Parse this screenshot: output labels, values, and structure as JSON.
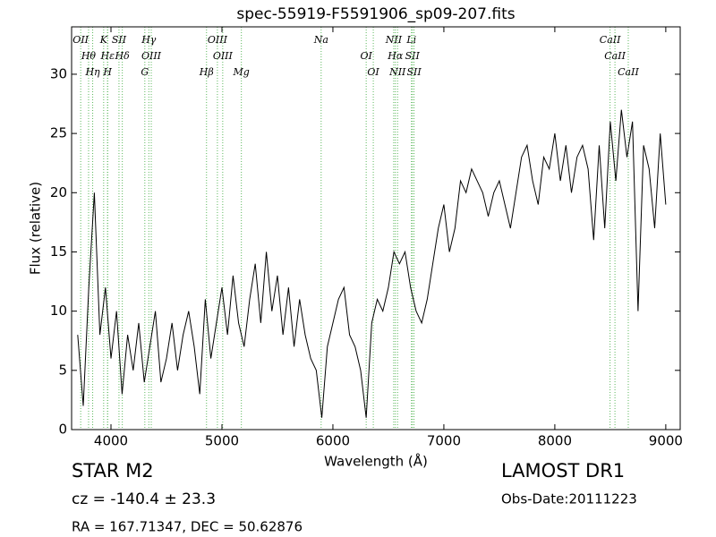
{
  "chart_data": {
    "type": "line",
    "title": "spec-55919-F5591906_sp09-207.fits",
    "x_label": "Wavelength (Å)",
    "y_label": "Flux (relative)",
    "xlim": [
      3645,
      9130
    ],
    "ylim": [
      0,
      34
    ],
    "xticks": [
      4000,
      5000,
      6000,
      7000,
      8000,
      9000
    ],
    "yticks": [
      0,
      5,
      10,
      15,
      20,
      25,
      30
    ],
    "series": [
      {
        "color": "#000000",
        "x": [
          3700,
          3750,
          3800,
          3850,
          3900,
          3950,
          4000,
          4050,
          4100,
          4150,
          4200,
          4250,
          4300,
          4350,
          4400,
          4450,
          4500,
          4550,
          4600,
          4650,
          4700,
          4750,
          4800,
          4850,
          4900,
          4950,
          5000,
          5050,
          5100,
          5150,
          5200,
          5250,
          5300,
          5350,
          5400,
          5450,
          5500,
          5550,
          5600,
          5650,
          5700,
          5750,
          5800,
          5850,
          5900,
          5950,
          6000,
          6050,
          6100,
          6150,
          6200,
          6250,
          6300,
          6350,
          6400,
          6450,
          6500,
          6550,
          6600,
          6650,
          6700,
          6750,
          6800,
          6850,
          6900,
          6950,
          7000,
          7050,
          7100,
          7150,
          7200,
          7250,
          7300,
          7350,
          7400,
          7450,
          7500,
          7550,
          7600,
          7650,
          7700,
          7750,
          7800,
          7850,
          7900,
          7950,
          8000,
          8050,
          8100,
          8150,
          8200,
          8250,
          8300,
          8350,
          8400,
          8450,
          8500,
          8550,
          8600,
          8650,
          8700,
          8750,
          8800,
          8850,
          8900,
          8950,
          9000
        ],
        "values": [
          8,
          2,
          12,
          20,
          8,
          12,
          6,
          10,
          3,
          8,
          5,
          9,
          4,
          7,
          10,
          4,
          6,
          9,
          5,
          8,
          10,
          7,
          3,
          11,
          6,
          9,
          12,
          8,
          13,
          9,
          7,
          11,
          14,
          9,
          15,
          10,
          13,
          8,
          12,
          7,
          11,
          8,
          6,
          5,
          1,
          7,
          9,
          11,
          12,
          8,
          7,
          5,
          1,
          9,
          11,
          10,
          12,
          15,
          14,
          15,
          12,
          10,
          9,
          11,
          14,
          17,
          19,
          15,
          17,
          21,
          20,
          22,
          21,
          20,
          18,
          20,
          21,
          19,
          17,
          20,
          23,
          24,
          21,
          19,
          23,
          22,
          25,
          21,
          24,
          20,
          23,
          24,
          22,
          16,
          24,
          17,
          26,
          21,
          27,
          23,
          26,
          10,
          24,
          22,
          17,
          25,
          19
        ]
      }
    ],
    "line_color": "#5cb85c",
    "lines": [
      {
        "name": "OII",
        "wavelength": 3727
      },
      {
        "name": "Hθ",
        "wavelength": 3798
      },
      {
        "name": "Hη",
        "wavelength": 3835
      },
      {
        "name": "K",
        "wavelength": 3934
      },
      {
        "name": "Hε",
        "wavelength": 3970
      },
      {
        "name": "H",
        "wavelength": 3969
      },
      {
        "name": "SII",
        "wavelength": 4072
      },
      {
        "name": "Hδ",
        "wavelength": 4102
      },
      {
        "name": "G",
        "wavelength": 4305
      },
      {
        "name": "Hγ",
        "wavelength": 4341
      },
      {
        "name": "OIII",
        "wavelength": 4363
      },
      {
        "name": "Hβ",
        "wavelength": 4861
      },
      {
        "name": "OIII",
        "wavelength": 4959
      },
      {
        "name": "OIII",
        "wavelength": 5007
      },
      {
        "name": "Mg",
        "wavelength": 5175
      },
      {
        "name": "Na",
        "wavelength": 5894
      },
      {
        "name": "OI",
        "wavelength": 6300
      },
      {
        "name": "OI",
        "wavelength": 6364
      },
      {
        "name": "NII",
        "wavelength": 6548
      },
      {
        "name": "Hα",
        "wavelength": 6563
      },
      {
        "name": "NII",
        "wavelength": 6583
      },
      {
        "name": "Li",
        "wavelength": 6708
      },
      {
        "name": "SII",
        "wavelength": 6716
      },
      {
        "name": "SII",
        "wavelength": 6731
      },
      {
        "name": "CaII",
        "wavelength": 8498
      },
      {
        "name": "CaII",
        "wavelength": 8542
      },
      {
        "name": "CaII",
        "wavelength": 8662
      }
    ],
    "object": "STAR   M2",
    "redshift": "cz = -140.4  ± 23.3",
    "coords": "RA = 167.71347, DEC = 50.62876",
    "survey": "LAMOST DR1",
    "obs_date": "Obs-Date:20111223"
  }
}
